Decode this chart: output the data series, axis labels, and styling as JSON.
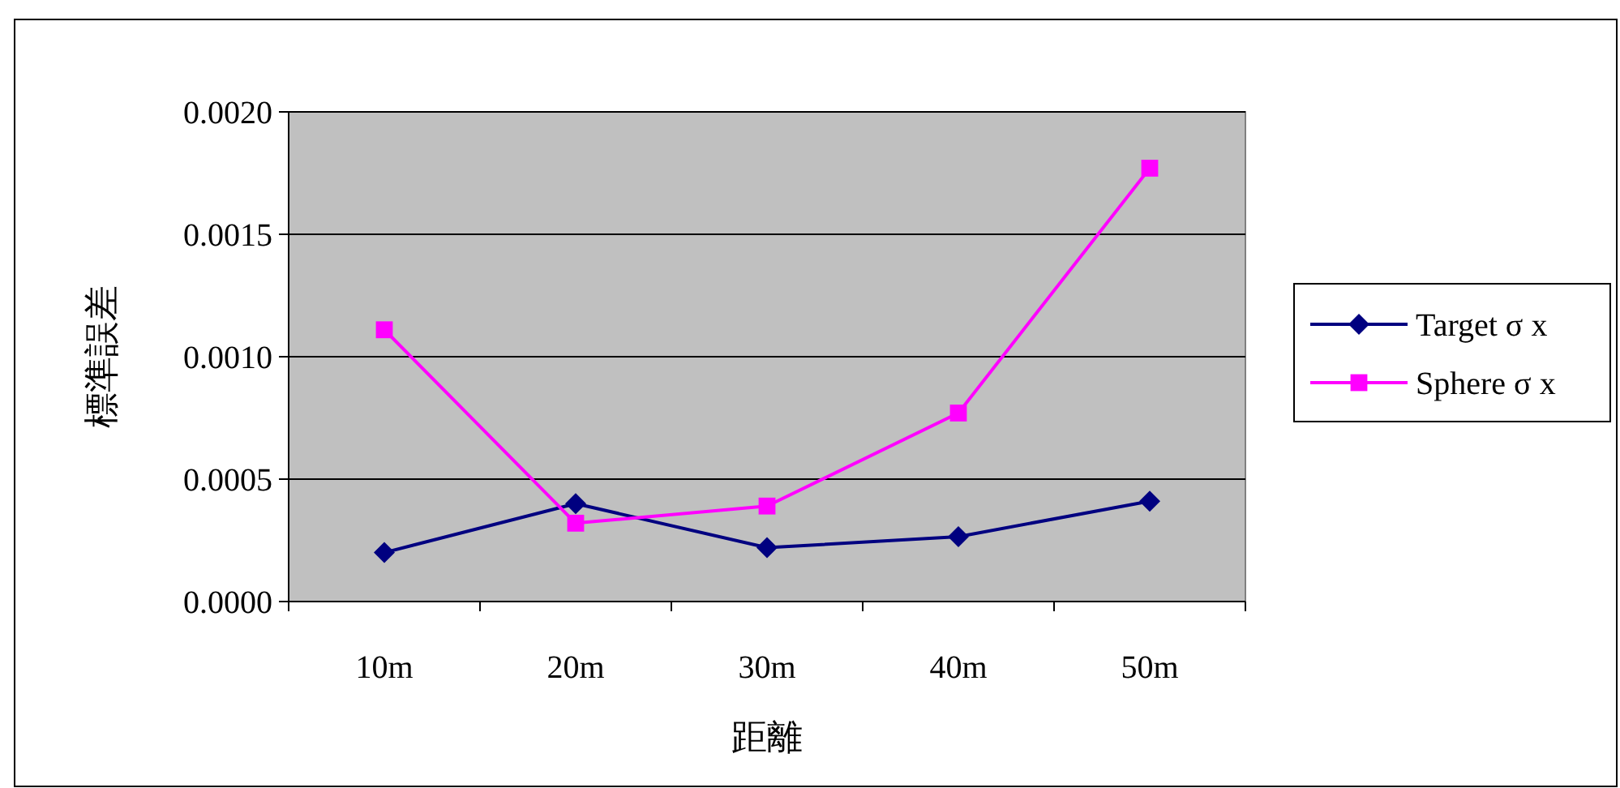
{
  "chart_data": {
    "type": "line",
    "xlabel": "距離",
    "ylabel": "標準誤差",
    "categories": [
      "10m",
      "20m",
      "30m",
      "40m",
      "50m"
    ],
    "series": [
      {
        "name": "Target σ x",
        "color": "#000080",
        "marker": "diamond",
        "values": [
          0.0002,
          0.0004,
          0.00022,
          0.000265,
          0.00041
        ]
      },
      {
        "name": "Sphere σ x",
        "color": "#ff00ff",
        "marker": "square",
        "values": [
          0.00111,
          0.00032,
          0.00039,
          0.00077,
          0.00177
        ]
      }
    ],
    "ylim": [
      0,
      0.002
    ],
    "yticks": [
      {
        "value": 0,
        "label": "0.0000"
      },
      {
        "value": 0.0005,
        "label": "0.0005"
      },
      {
        "value": 0.001,
        "label": "0.0010"
      },
      {
        "value": 0.0015,
        "label": "0.0015"
      },
      {
        "value": 0.002,
        "label": "0.0020"
      }
    ],
    "grid": "y",
    "legend": "right"
  }
}
